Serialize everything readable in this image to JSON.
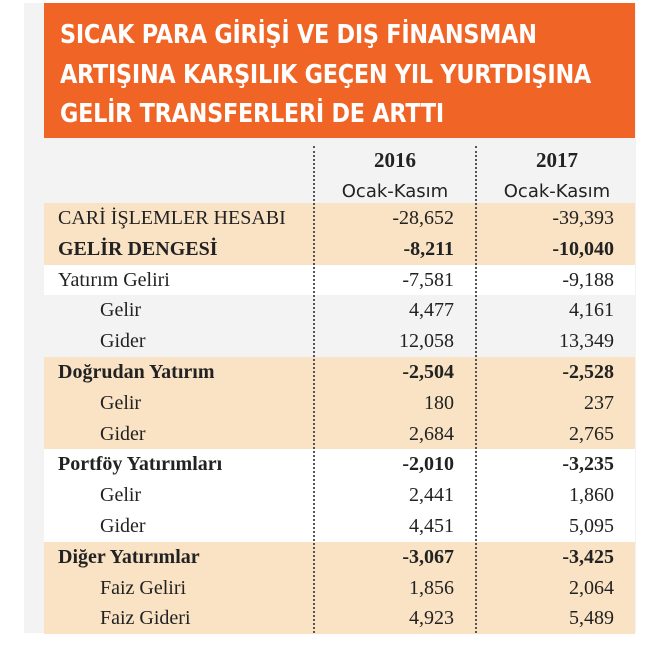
{
  "title_lines": [
    "SICAK PARA GİRİŞİ VE DIŞ FİNANSMAN",
    "ARTIŞINA KARŞILIK GEÇEN YIL YURTDIŞINA",
    "GELİR TRANSFERLERİ DE ARTTI"
  ],
  "columns": [
    {
      "year": "2016",
      "range": "Ocak-Kasım"
    },
    {
      "year": "2017",
      "range": "Ocak-Kasım"
    }
  ],
  "rows": [
    {
      "label": "CARİ İŞLEMLER HESABI",
      "v2016": "-28,652",
      "v2017": "-39,393"
    },
    {
      "label": "GELİR DENGESİ",
      "v2016": "-8,211",
      "v2017": "-10,040"
    },
    {
      "label": "Yatırım Geliri",
      "v2016": "-7,581",
      "v2017": "-9,188"
    },
    {
      "label": "Gelir",
      "v2016": "4,477",
      "v2017": "4,161"
    },
    {
      "label": "Gider",
      "v2016": "12,058",
      "v2017": "13,349"
    },
    {
      "label": "Doğrudan Yatırım",
      "v2016": "-2,504",
      "v2017": "-2,528"
    },
    {
      "label": "Gelir",
      "v2016": "180",
      "v2017": "237"
    },
    {
      "label": "Gider",
      "v2016": "2,684",
      "v2017": "2,765"
    },
    {
      "label": "Portföy Yatırımları",
      "v2016": "-2,010",
      "v2017": "-3,235"
    },
    {
      "label": "Gelir",
      "v2016": "2,441",
      "v2017": "1,860"
    },
    {
      "label": "Gider",
      "v2016": "4,451",
      "v2017": "5,095"
    },
    {
      "label": "Diğer Yatırımlar",
      "v2016": "-3,067",
      "v2017": "-3,425"
    },
    {
      "label": "Faiz Geliri",
      "v2016": "1,856",
      "v2017": "2,064"
    },
    {
      "label": "Faiz Gideri",
      "v2016": "4,923",
      "v2017": "5,489"
    }
  ],
  "colors": {
    "header": "#f06425",
    "highlight": "#f9e3c4"
  }
}
